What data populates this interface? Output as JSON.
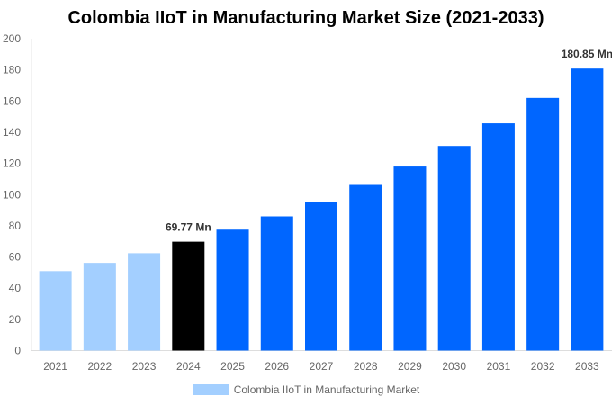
{
  "chart_data": {
    "type": "bar",
    "title": "Colombia IIoT in Manufacturing Market Size (2021-2033)",
    "categories": [
      "2021",
      "2022",
      "2023",
      "2024",
      "2025",
      "2026",
      "2027",
      "2028",
      "2029",
      "2030",
      "2031",
      "2032",
      "2033"
    ],
    "series": [
      {
        "name": "Colombia IIoT in Manufacturing Market",
        "values": [
          50.9,
          56.2,
          62.4,
          69.77,
          77.5,
          86.0,
          95.4,
          106.2,
          118.0,
          131.2,
          145.7,
          162.0,
          180.85
        ]
      }
    ],
    "data_labels": [
      {
        "index": 3,
        "text": "69.77 Mn"
      },
      {
        "index": 12,
        "text": "180.85 Mn"
      }
    ],
    "ylim": [
      0,
      200
    ],
    "yticks": [
      0,
      20,
      40,
      60,
      80,
      100,
      120,
      140,
      160,
      180,
      200
    ],
    "xlabel": "",
    "ylabel": "",
    "grid": false,
    "legend": "bottom",
    "colors": {
      "historical": "#a3cfff",
      "base_year": "#000000",
      "forecast": "#0066ff"
    }
  }
}
